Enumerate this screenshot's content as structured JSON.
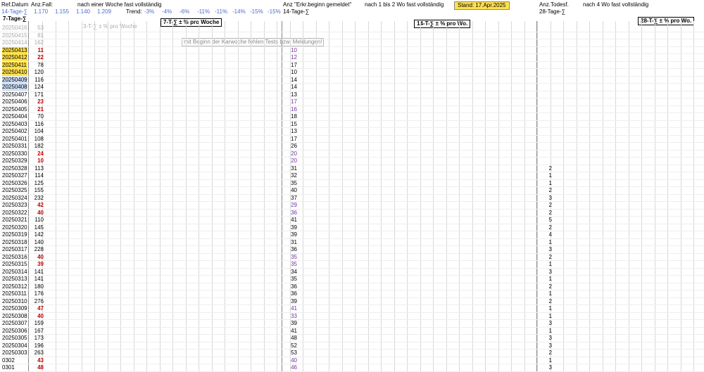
{
  "header": {
    "ref": "Ref.Datum",
    "cases_title": "Anz.Fall:",
    "cases_note": "nach einer  Woche fast vollständig",
    "sum14": "14-Tage-∑",
    "sum14_values": [
      "1.170",
      "1.155",
      "1.140",
      "1.209"
    ],
    "trend_label": "Trend:",
    "trend_values": [
      "-3%",
      "-4%",
      "-6%",
      "-11%",
      "-11%",
      "-14%",
      "-15%",
      "-15%"
    ],
    "sum7": "7-Tage-∑",
    "pct7": "7-T-∑ ± % pro Woche",
    "pct3": "3-T-∑ ± % pro Woche",
    "notice": "mit Beginn der Karwoche fehlen Tests bzw. Meldungen!",
    "onset_title": "Anz \"Erkr.beginn gemeldet\"",
    "onset_note": "nach 1 bis 2 Wo fast vollständig",
    "stand": "Stand:  17.Apr.2025",
    "onset_sum": "14-Tage-∑",
    "onset_pct": "14-T-∑ ± % pro Wo.",
    "deaths_title": "Anz.Todesf.",
    "deaths_note": "nach 4 Wo fast vollständig",
    "deaths_sum": "28-Tage-∑",
    "deaths_pct": "28-T-∑ ± % pro Wo."
  },
  "rows": [
    {
      "date": "20250416",
      "cases": 53,
      "onset": null,
      "deaths": null
    },
    {
      "date": "20250415",
      "cases": 81,
      "onset": null,
      "deaths": null
    },
    {
      "date": "20250414",
      "cases": 162,
      "onset": null,
      "deaths": null
    },
    {
      "date": "20250413",
      "cases": 11,
      "onset": 10,
      "deaths": null
    },
    {
      "date": "20250412",
      "cases": 22,
      "onset": 12,
      "deaths": null
    },
    {
      "date": "20250411",
      "cases": 78,
      "onset": 17,
      "deaths": null
    },
    {
      "date": "20250410",
      "cases": 120,
      "onset": 10,
      "deaths": null
    },
    {
      "date": "20250409",
      "cases": 116,
      "onset": 14,
      "deaths": null
    },
    {
      "date": "20250408",
      "cases": 124,
      "onset": 14,
      "deaths": null
    },
    {
      "date": "20250407",
      "cases": 171,
      "onset": 13,
      "deaths": null
    },
    {
      "date": "20250406",
      "cases": 23,
      "onset": 17,
      "deaths": null
    },
    {
      "date": "20250405",
      "cases": 21,
      "onset": 16,
      "deaths": null
    },
    {
      "date": "20250404",
      "cases": 70,
      "onset": 18,
      "deaths": null
    },
    {
      "date": "20250403",
      "cases": 116,
      "onset": 15,
      "deaths": null
    },
    {
      "date": "20250402",
      "cases": 104,
      "onset": 13,
      "deaths": null
    },
    {
      "date": "20250401",
      "cases": 108,
      "onset": 17,
      "deaths": null
    },
    {
      "date": "20250331",
      "cases": 182,
      "onset": 26,
      "deaths": null
    },
    {
      "date": "20250330",
      "cases": 24,
      "onset": 20,
      "deaths": null
    },
    {
      "date": "20250329",
      "cases": 10,
      "onset": 20,
      "deaths": null
    },
    {
      "date": "20250328",
      "cases": 113,
      "onset": 31,
      "deaths": 2
    },
    {
      "date": "20250327",
      "cases": 114,
      "onset": 32,
      "deaths": 1
    },
    {
      "date": "20250326",
      "cases": 125,
      "onset": 35,
      "deaths": 1
    },
    {
      "date": "20250325",
      "cases": 155,
      "onset": 40,
      "deaths": 2
    },
    {
      "date": "20250324",
      "cases": 232,
      "onset": 37,
      "deaths": 3
    },
    {
      "date": "20250323",
      "cases": 42,
      "onset": 29,
      "deaths": 2
    },
    {
      "date": "20250322",
      "cases": 40,
      "onset": 36,
      "deaths": 2
    },
    {
      "date": "20250321",
      "cases": 110,
      "onset": 41,
      "deaths": 5
    },
    {
      "date": "20250320",
      "cases": 145,
      "onset": 39,
      "deaths": 2
    },
    {
      "date": "20250319",
      "cases": 142,
      "onset": 39,
      "deaths": 4
    },
    {
      "date": "20250318",
      "cases": 140,
      "onset": 31,
      "deaths": 1
    },
    {
      "date": "20250317",
      "cases": 228,
      "onset": 36,
      "deaths": 3
    },
    {
      "date": "20250316",
      "cases": 40,
      "onset": 35,
      "deaths": 2
    },
    {
      "date": "20250315",
      "cases": 39,
      "onset": 35,
      "deaths": 1
    },
    {
      "date": "20250314",
      "cases": 141,
      "onset": 34,
      "deaths": 3
    },
    {
      "date": "20250313",
      "cases": 141,
      "onset": 35,
      "deaths": 1
    },
    {
      "date": "20250312",
      "cases": 180,
      "onset": 36,
      "deaths": 2
    },
    {
      "date": "20250311",
      "cases": 176,
      "onset": 36,
      "deaths": 1
    },
    {
      "date": "20250310",
      "cases": 276,
      "onset": 39,
      "deaths": 2
    },
    {
      "date": "20250309",
      "cases": 47,
      "onset": 41,
      "deaths": 1
    },
    {
      "date": "20250308",
      "cases": 40,
      "onset": 33,
      "deaths": 1
    },
    {
      "date": "20250307",
      "cases": 159,
      "onset": 39,
      "deaths": 3
    },
    {
      "date": "20250306",
      "cases": 167,
      "onset": 41,
      "deaths": 1
    },
    {
      "date": "20250305",
      "cases": 173,
      "onset": 48,
      "deaths": 3
    },
    {
      "date": "20250304",
      "cases": 196,
      "onset": 52,
      "deaths": 3
    },
    {
      "date": "20250303",
      "cases": 263,
      "onset": 53,
      "deaths": 2
    },
    {
      "date": "0302",
      "cases": 43,
      "onset": 40,
      "deaths": 1
    },
    {
      "date": "0301",
      "cases": 48,
      "onset": 46,
      "deaths": 3
    }
  ]
}
